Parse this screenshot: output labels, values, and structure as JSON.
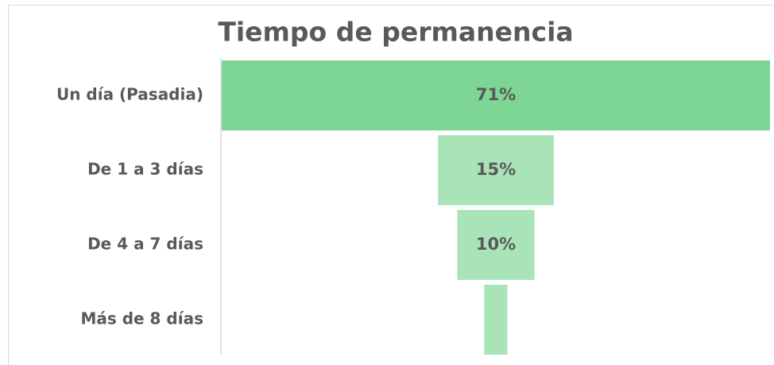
{
  "chart_data": {
    "type": "funnel",
    "title": "Tiempo de permanencia",
    "categories": [
      "Un día (Pasadia)",
      "De 1 a 3 días",
      "De 4 a 7 días",
      "Más de 8 días"
    ],
    "values": [
      71,
      15,
      10,
      3
    ],
    "value_labels": [
      "71%",
      "15%",
      "10%",
      null
    ],
    "colors": [
      "#7dd694",
      "#a8e4b8",
      "#a8e4b8",
      "#a8e4b8"
    ]
  }
}
